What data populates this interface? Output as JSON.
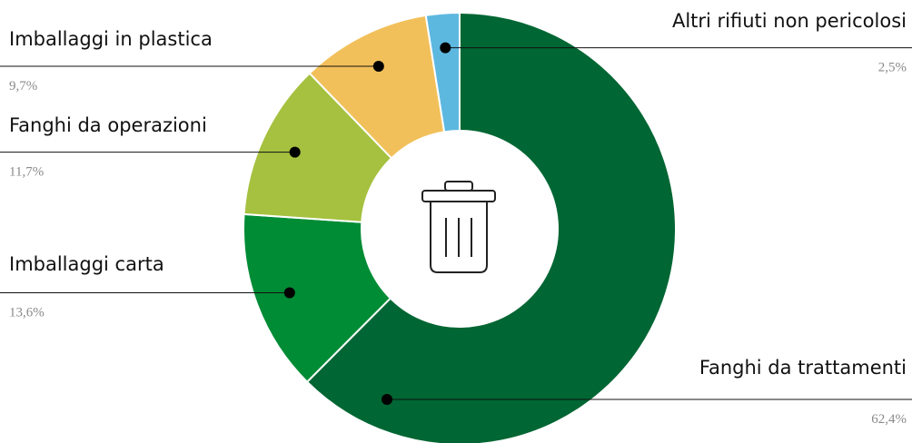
{
  "chart_data": {
    "type": "donut",
    "categories": [
      "Fanghi da trattamenti",
      "Imballaggi carta",
      "Fanghi da operazioni",
      "Imballaggi in plastica",
      "Altri rifiuti non pericolosi"
    ],
    "values": [
      62.4,
      13.6,
      11.7,
      9.7,
      2.5
    ],
    "value_labels": [
      "62,4%",
      "13,6%",
      "11,7%",
      "9,7%",
      "2,5%"
    ],
    "colors": [
      "#006633",
      "#008c35",
      "#a5c13f",
      "#f2c05a",
      "#5db8e0"
    ]
  }
}
